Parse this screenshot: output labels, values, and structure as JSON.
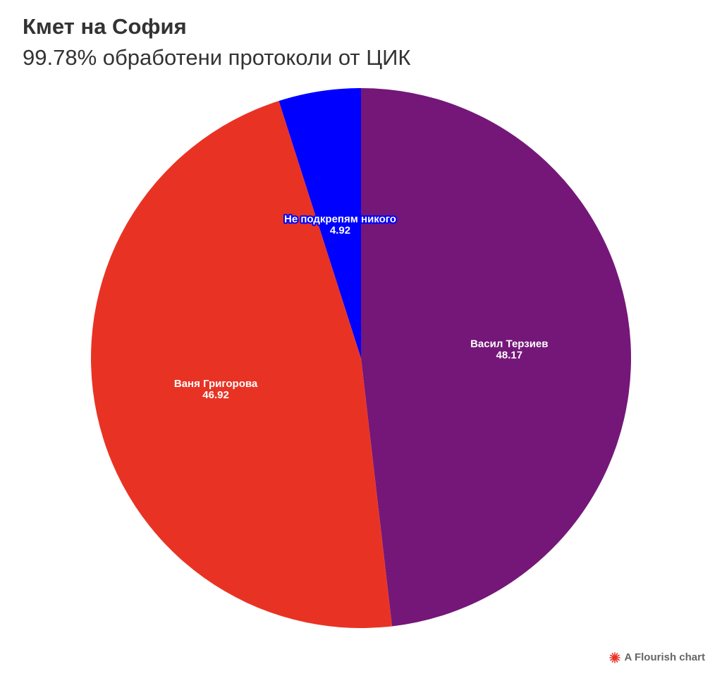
{
  "chart_data": {
    "type": "pie",
    "title": "Кмет на София",
    "subtitle": "99.78% обработени протоколи от ЦИК",
    "slices": [
      {
        "label": "Васил Терзиев",
        "value": 48.17,
        "value_text": "48.17",
        "color": "#741778"
      },
      {
        "label": "Ваня Григорова",
        "value": 46.92,
        "value_text": "46.92",
        "color": "#e83324"
      },
      {
        "label": "Не подкрепям никого",
        "value": 4.92,
        "value_text": "4.92",
        "color": "#0000ff"
      }
    ]
  },
  "footer": {
    "text": "A Flourish chart",
    "logo_icon": "flourish-logo-icon",
    "logo_color": "#e83324"
  }
}
